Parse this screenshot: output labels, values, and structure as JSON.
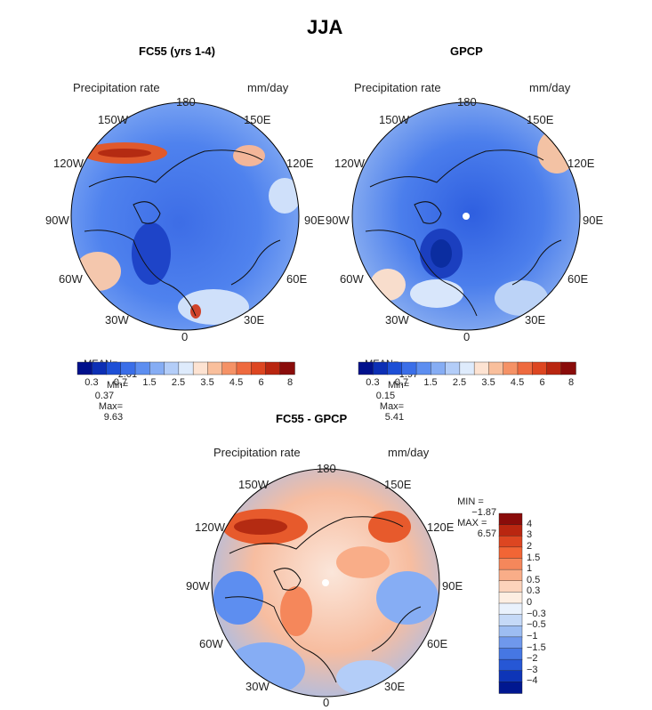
{
  "page_title": "JJA",
  "panels": [
    {
      "id": "fc55",
      "title": "FC55 (yrs 1-4)",
      "variable": "Precipitation rate",
      "units": "mm/day",
      "stats": {
        "mean_label": "MEAN=",
        "mean": "2.01",
        "min_label": "Min=",
        "min": "0.37",
        "max_label": "Max=",
        "max": "9.63"
      }
    },
    {
      "id": "gpcp",
      "title": "GPCP",
      "variable": "Precipitation rate",
      "units": "mm/day",
      "stats": {
        "mean_label": "MEAN=",
        "mean": "1.97",
        "min_label": "Min=",
        "min": "0.15",
        "max_label": "Max=",
        "max": "5.41"
      }
    },
    {
      "id": "diff",
      "title": "FC55 - GPCP",
      "variable": "Precipitation rate",
      "units": "mm/day",
      "stats": {
        "min_label": "MIN =",
        "min": "−1.87",
        "max_label": "MAX =",
        "max": "6.57"
      }
    }
  ],
  "longitude_labels": {
    "top": "180",
    "bottom": "0",
    "left_top": "150W",
    "left_upper": "120W",
    "left_mid": "90W",
    "left_lower": "60W",
    "left_bottom": "30W",
    "right_top": "150E",
    "right_upper": "120E",
    "right_mid": "90E",
    "right_lower": "60E",
    "right_bottom": "30E"
  },
  "colorbar_precip": {
    "colors": [
      "#00108c",
      "#0c2fb5",
      "#1d4fd6",
      "#3a6ee8",
      "#5d8ef0",
      "#86adf4",
      "#b3cdf8",
      "#deebfc",
      "#fde3d2",
      "#f9bf9c",
      "#f59266",
      "#ee6a3f",
      "#dd4621",
      "#b92610",
      "#8a0c0a"
    ],
    "ticks": [
      "0.3",
      "0.7",
      "1.5",
      "2.5",
      "3.5",
      "4.5",
      "6",
      "8"
    ]
  },
  "colorbar_diff": {
    "colors": [
      "#8a0c0a",
      "#b92610",
      "#dd4621",
      "#f26535",
      "#f5875b",
      "#f9ad88",
      "#fcd3bb",
      "#fdeee2",
      "#e9f1fc",
      "#c5d9f7",
      "#9dbdf2",
      "#6f98ec",
      "#4677e3",
      "#2657d5",
      "#0e35b7",
      "#001790"
    ],
    "ticks": [
      "4",
      "3",
      "2",
      "1.5",
      "1",
      "0.5",
      "0.3",
      "0",
      "−0.3",
      "−0.5",
      "−1",
      "−1.5",
      "−2",
      "−3",
      "−4"
    ]
  }
}
